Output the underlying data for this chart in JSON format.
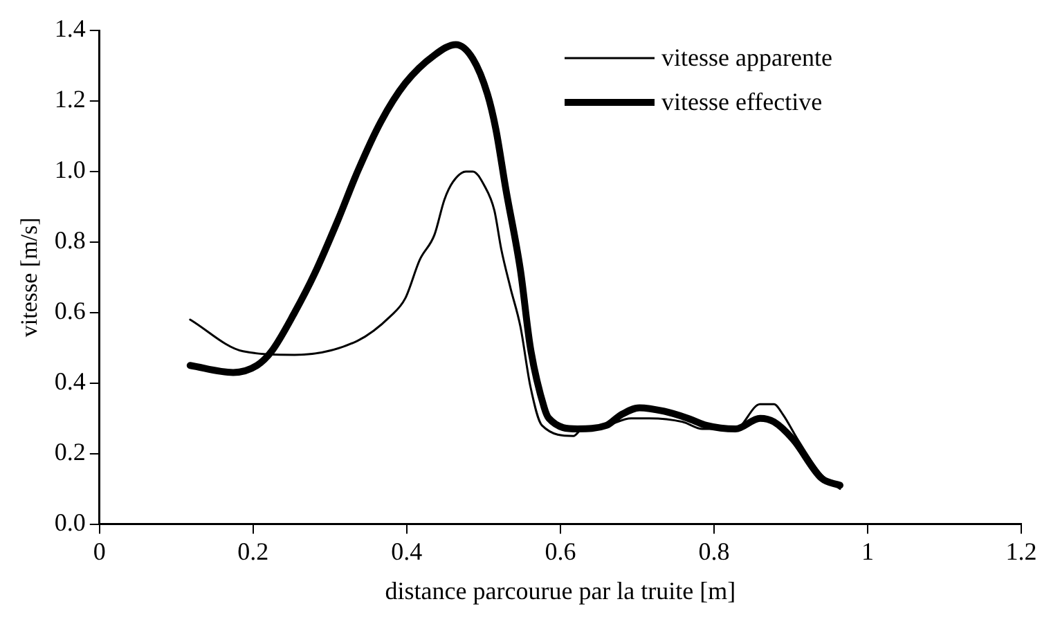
{
  "chart_data": {
    "type": "line",
    "xlabel": "distance parcourue par la truite [m]",
    "ylabel": "vitesse [m/s]",
    "xlim": [
      0,
      1.2
    ],
    "ylim": [
      0,
      1.4
    ],
    "xticks": [
      0,
      0.2,
      0.4,
      0.6,
      0.8,
      1,
      1.2
    ],
    "yticks": [
      {
        "value": 0,
        "label": "0.0"
      },
      {
        "value": 0.2,
        "label": "0.2"
      },
      {
        "value": 0.4,
        "label": "0.4"
      },
      {
        "value": 0.6,
        "label": "0.6"
      },
      {
        "value": 0.8,
        "label": "0.8"
      },
      {
        "value": 1,
        "label": "1.0"
      },
      {
        "value": 1.2,
        "label": "1.2"
      },
      {
        "value": 1.4,
        "label": "1.4"
      }
    ],
    "grid": false,
    "legend": "top right",
    "marker": "none",
    "line_style": "solid",
    "series": [
      {
        "name": "vitesse apparente",
        "color": "#000000",
        "x": [
          0.118,
          0.187,
          0.254,
          0.336,
          0.379,
          0.398,
          0.417,
          0.436,
          0.449,
          0.46,
          0.477,
          0.486,
          0.501,
          0.514,
          0.523,
          0.535,
          0.548,
          0.561,
          0.576,
          0.617,
          0.628,
          0.66,
          0.692,
          0.716,
          0.759,
          0.785,
          0.828,
          0.86,
          0.878,
          0.89,
          0.909,
          0.94,
          0.964
        ],
        "values": [
          0.58,
          0.49,
          0.48,
          0.52,
          0.59,
          0.64,
          0.75,
          0.82,
          0.92,
          0.97,
          1.0,
          1.0,
          0.96,
          0.89,
          0.78,
          0.67,
          0.56,
          0.39,
          0.28,
          0.25,
          0.27,
          0.28,
          0.3,
          0.3,
          0.29,
          0.27,
          0.27,
          0.34,
          0.34,
          0.31,
          0.24,
          0.14,
          0.1
        ]
      },
      {
        "name": "vitesse effective",
        "color": "#000000",
        "x": [
          0.118,
          0.174,
          0.205,
          0.224,
          0.254,
          0.28,
          0.31,
          0.336,
          0.366,
          0.398,
          0.436,
          0.464,
          0.486,
          0.505,
          0.516,
          0.529,
          0.548,
          0.561,
          0.579,
          0.585,
          0.622,
          0.66,
          0.679,
          0.703,
          0.735,
          0.766,
          0.79,
          0.828,
          0.86,
          0.878,
          0.903,
          0.94,
          0.964
        ],
        "values": [
          0.45,
          0.43,
          0.45,
          0.49,
          0.6,
          0.71,
          0.86,
          1.0,
          1.14,
          1.25,
          1.33,
          1.36,
          1.32,
          1.22,
          1.12,
          0.95,
          0.72,
          0.5,
          0.33,
          0.3,
          0.27,
          0.28,
          0.31,
          0.33,
          0.32,
          0.3,
          0.28,
          0.27,
          0.3,
          0.29,
          0.24,
          0.13,
          0.11
        ]
      }
    ]
  }
}
